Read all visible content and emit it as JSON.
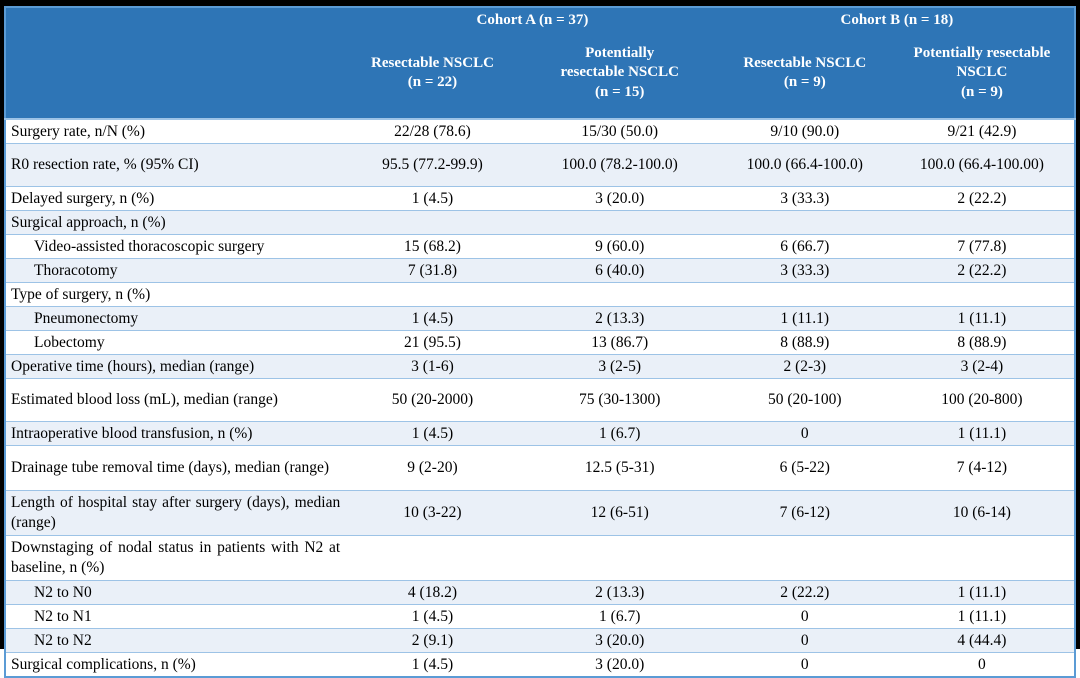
{
  "colors": {
    "header_bg": "#2E75B6",
    "header_text": "#FFFFFF",
    "band_row_bg": "#EAF0F8",
    "row_border": "#9DC3E6",
    "outer_border": "#5B9BD5",
    "frame_bg": "#000000",
    "body_text": "#000000"
  },
  "table": {
    "cohorts": [
      {
        "label": "Cohort A (n = 37)"
      },
      {
        "label": "Cohort B (n = 18)"
      }
    ],
    "subheaders": [
      "Resectable NSCLC\n(n = 22)",
      "Potentially\nresectable NSCLC\n(n = 15)",
      "Resectable NSCLC\n(n = 9)",
      "Potentially resectable\nNSCLC\n(n = 9)"
    ],
    "rows": [
      {
        "label": "Surgery rate, n/N (%)",
        "values": [
          "22/28 (78.6)",
          "15/30 (50.0)",
          "9/10 (90.0)",
          "9/21 (42.9)"
        ]
      },
      {
        "label": "R0 resection rate, % (95% CI)",
        "values": [
          "95.5 (77.2-99.9)",
          "100.0 (78.2-100.0)",
          "100.0 (66.4-100.0)",
          "100.0 (66.4-100.00)"
        ]
      },
      {
        "label": "Delayed surgery, n (%)",
        "values": [
          "1 (4.5)",
          "3 (20.0)",
          "3 (33.3)",
          "2 (22.2)"
        ]
      },
      {
        "label": "Surgical approach, n (%)",
        "values": [
          "",
          "",
          "",
          ""
        ]
      },
      {
        "label": "Video-assisted thoracoscopic surgery",
        "values": [
          "15 (68.2)",
          "9 (60.0)",
          "6 (66.7)",
          "7 (77.8)"
        ]
      },
      {
        "label": "Thoracotomy",
        "values": [
          "7 (31.8)",
          "6 (40.0)",
          "3 (33.3)",
          "2 (22.2)"
        ]
      },
      {
        "label": "Type of surgery, n (%)",
        "values": [
          "",
          "",
          "",
          ""
        ]
      },
      {
        "label": "Pneumonectomy",
        "values": [
          "1 (4.5)",
          "2 (13.3)",
          "1 (11.1)",
          "1 (11.1)"
        ]
      },
      {
        "label": "Lobectomy",
        "values": [
          "21 (95.5)",
          "13 (86.7)",
          "8 (88.9)",
          "8 (88.9)"
        ]
      },
      {
        "label": "Operative time (hours), median (range)",
        "values": [
          "3 (1-6)",
          "3 (2-5)",
          "2 (2-3)",
          "3 (2-4)"
        ]
      },
      {
        "label": "Estimated blood loss (mL), median (range)",
        "values": [
          "50 (20-2000)",
          "75 (30-1300)",
          "50 (20-100)",
          "100 (20-800)"
        ]
      },
      {
        "label": "Intraoperative blood transfusion, n (%)",
        "values": [
          "1 (4.5)",
          "1 (6.7)",
          "0",
          "1 (11.1)"
        ]
      },
      {
        "label": "Drainage tube removal time (days), median (range)",
        "values": [
          "9 (2-20)",
          "12.5 (5-31)",
          "6 (5-22)",
          "7 (4-12)"
        ]
      },
      {
        "label": "Length of hospital stay after surgery (days), median (range)",
        "values": [
          "10 (3-22)",
          "12 (6-51)",
          "7 (6-12)",
          "10 (6-14)"
        ]
      },
      {
        "label": "Downstaging of nodal status in patients with N2 at baseline, n (%)",
        "values": [
          "",
          "",
          "",
          ""
        ]
      },
      {
        "label": "N2 to N0",
        "values": [
          "4 (18.2)",
          "2 (13.3)",
          "2 (22.2)",
          "1 (11.1)"
        ]
      },
      {
        "label": "N2 to N1",
        "values": [
          "1 (4.5)",
          "1 (6.7)",
          "0",
          "1 (11.1)"
        ]
      },
      {
        "label": "N2 to N2",
        "values": [
          "2 (9.1)",
          "3 (20.0)",
          "0",
          "4 (44.4)"
        ]
      },
      {
        "label": "Surgical complications, n (%)",
        "values": [
          "1 (4.5)",
          "3 (20.0)",
          "0",
          "0"
        ]
      }
    ]
  }
}
